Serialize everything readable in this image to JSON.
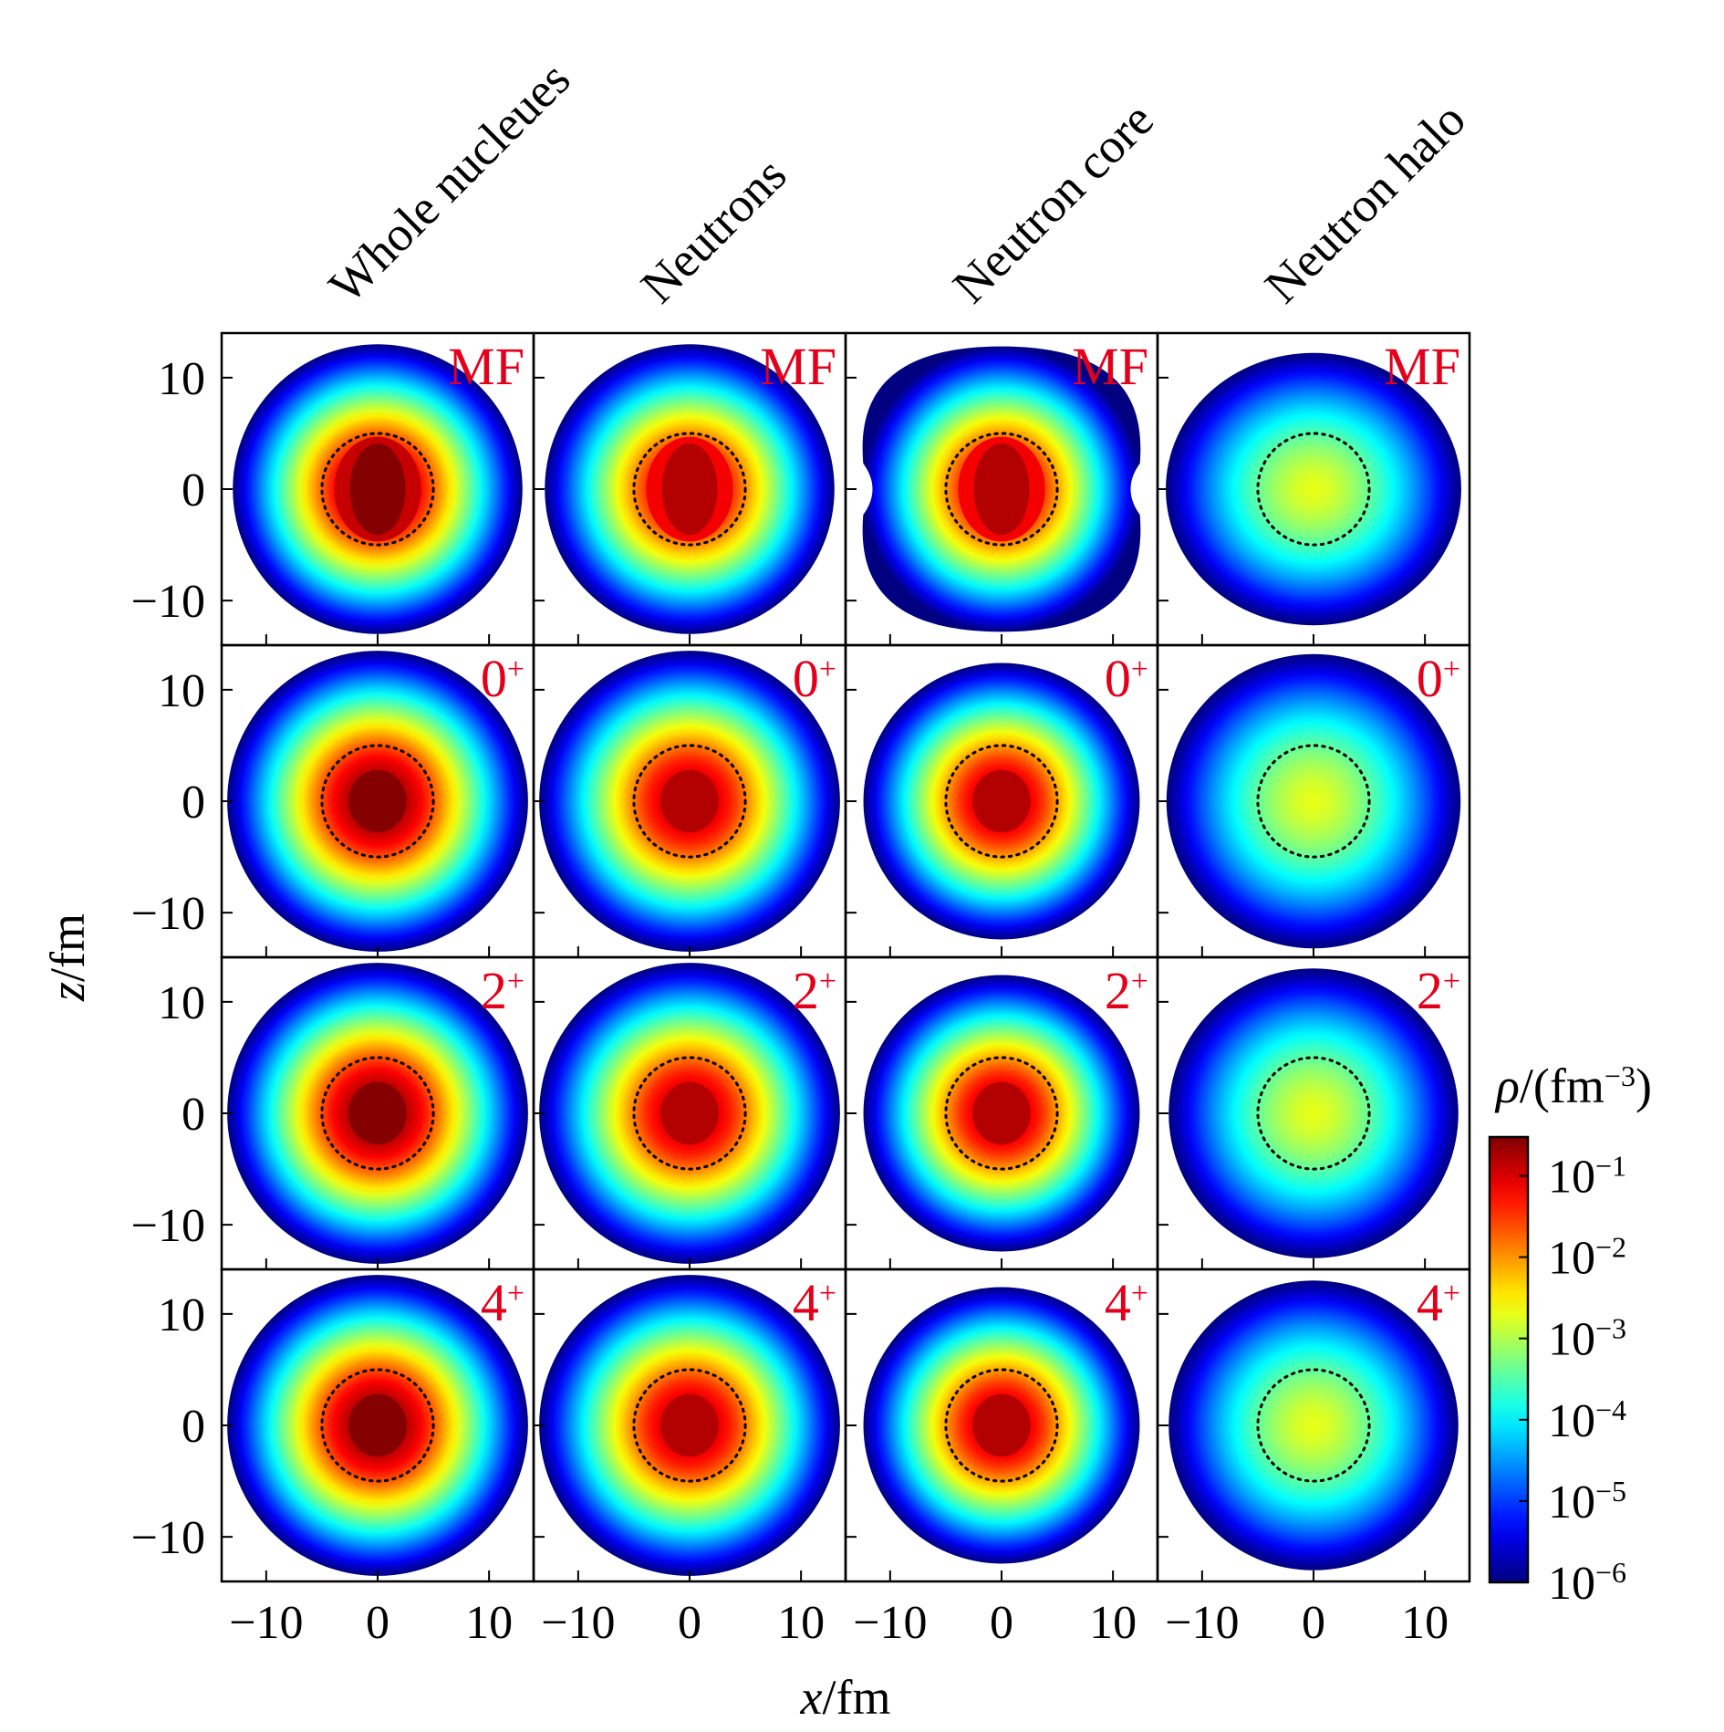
{
  "chart_data": {
    "type": "heatmap",
    "title": "",
    "columns": [
      "Whole nucleues",
      "Neutrons",
      "Neutron core",
      "Neutron halo"
    ],
    "rows": [
      "MF",
      "0",
      "2",
      "4"
    ],
    "row_labels": [
      {
        "text": "MF",
        "sup": ""
      },
      {
        "text": "0",
        "sup": "+"
      },
      {
        "text": "2",
        "sup": "+"
      },
      {
        "text": "4",
        "sup": "+"
      }
    ],
    "xlabel": {
      "var": "x",
      "unit": "/fm"
    },
    "ylabel": {
      "var": "z",
      "unit": "/fm"
    },
    "xlim": [
      -14,
      14
    ],
    "ylim": [
      -14,
      14
    ],
    "x_ticks": [
      -10,
      0,
      10
    ],
    "x_tick_labels": [
      "−10",
      "0",
      "10"
    ],
    "y_ticks": [
      10,
      0,
      -10
    ],
    "y_tick_labels": [
      "10",
      "0",
      "−10"
    ],
    "colorbar": {
      "label_var": "ρ",
      "label_unit": "/(fm",
      "label_exp": "−3",
      "label_close": ")",
      "scale": "log",
      "range": [
        1e-06,
        0.3
      ],
      "ticks": [
        {
          "value": 0.1,
          "base": "10",
          "exp": "−1"
        },
        {
          "value": 0.01,
          "base": "10",
          "exp": "−2"
        },
        {
          "value": 0.001,
          "base": "10",
          "exp": "−3"
        },
        {
          "value": 0.0001,
          "base": "10",
          "exp": "−4"
        },
        {
          "value": 1e-05,
          "base": "10",
          "exp": "−5"
        },
        {
          "value": 1e-06,
          "base": "10",
          "exp": "−6"
        }
      ],
      "colormap": "jet"
    },
    "reference_circle_radius_fm": 5,
    "panels": [
      [
        {
          "shape": "circle",
          "r_outer_fm": 13,
          "core": "oblong",
          "peak_log": -0.55
        },
        {
          "shape": "circle",
          "r_outer_fm": 13,
          "core": "oblong",
          "peak_log": -0.8
        },
        {
          "shape": "pinched",
          "r_outer_fm": 12.8,
          "core": "oblong",
          "peak_log": -0.8
        },
        {
          "shape": "oblate",
          "r_outer_fm": 13,
          "core": "flat",
          "peak_log": -2.7
        }
      ],
      [
        {
          "shape": "circle",
          "r_outer_fm": 13.5,
          "core": "round",
          "peak_log": -0.55
        },
        {
          "shape": "circle",
          "r_outer_fm": 13.5,
          "core": "round",
          "peak_log": -0.8
        },
        {
          "shape": "circle",
          "r_outer_fm": 12.4,
          "core": "round",
          "peak_log": -0.8
        },
        {
          "shape": "circle",
          "r_outer_fm": 13.2,
          "core": "flat",
          "peak_log": -2.7
        }
      ],
      [
        {
          "shape": "circle",
          "r_outer_fm": 13.5,
          "core": "round",
          "peak_log": -0.55
        },
        {
          "shape": "circle",
          "r_outer_fm": 13.5,
          "core": "round",
          "peak_log": -0.8
        },
        {
          "shape": "circle",
          "r_outer_fm": 12.4,
          "core": "round",
          "peak_log": -0.8
        },
        {
          "shape": "circle",
          "r_outer_fm": 13,
          "core": "flat",
          "peak_log": -2.7
        }
      ],
      [
        {
          "shape": "circle",
          "r_outer_fm": 13.5,
          "core": "round",
          "peak_log": -0.55
        },
        {
          "shape": "circle",
          "r_outer_fm": 13.5,
          "core": "round",
          "peak_log": -0.8
        },
        {
          "shape": "circle",
          "r_outer_fm": 12.4,
          "core": "round",
          "peak_log": -0.8
        },
        {
          "shape": "circle",
          "r_outer_fm": 13,
          "core": "flat",
          "peak_log": -2.7
        }
      ]
    ],
    "colors": {
      "annotation": "#e3001b",
      "axis": "#000000"
    }
  }
}
